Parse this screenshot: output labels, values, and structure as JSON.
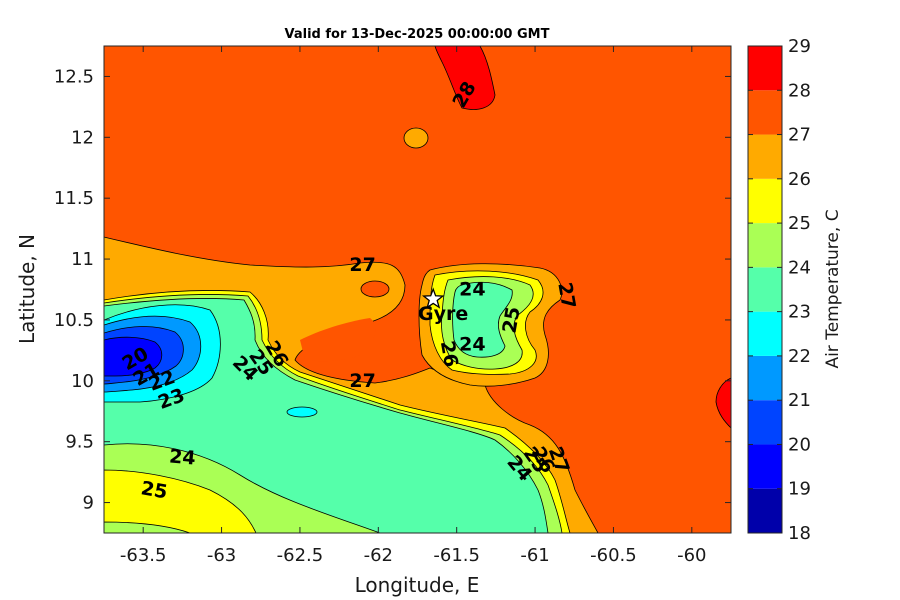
{
  "chart_data": {
    "type": "contour",
    "title": "Valid for 13-Dec-2025 00:00:00 GMT",
    "xlabel": "Longitude, E",
    "ylabel": "Latitude, N",
    "xlim": [
      -63.75,
      -59.75
    ],
    "ylim": [
      8.75,
      12.75
    ],
    "xticks": [
      -63.5,
      -63,
      -62.5,
      -62,
      -61.5,
      -61,
      -60.5,
      -60
    ],
    "yticks": [
      9,
      9.5,
      10,
      10.5,
      11,
      11.5,
      12,
      12.5
    ],
    "colorbar": {
      "label": "Air Temperature, C",
      "levels": [
        18,
        19,
        20,
        21,
        22,
        23,
        24,
        25,
        26,
        27,
        28,
        29
      ],
      "colors": [
        "#0000aa",
        "#0000ff",
        "#0044ff",
        "#0099ff",
        "#00ffff",
        "#55ffaa",
        "#aaff55",
        "#ffff00",
        "#ffaa00",
        "#ff5500",
        "#ff0000",
        "#aa0000"
      ]
    },
    "marker": {
      "label": "Gyre",
      "lon": -61.65,
      "lat": 10.67
    },
    "contour_labels": [
      {
        "text": "28",
        "lon": -61.45,
        "lat": 12.35,
        "rot": -60
      },
      {
        "text": "27",
        "lon": -62.1,
        "lat": 10.95,
        "rot": 0
      },
      {
        "text": "27",
        "lon": -62.1,
        "lat": 10.0,
        "rot": 0
      },
      {
        "text": "27",
        "lon": -60.8,
        "lat": 10.7,
        "rot": 80
      },
      {
        "text": "27",
        "lon": -60.85,
        "lat": 9.35,
        "rot": 70
      },
      {
        "text": "26",
        "lon": -62.65,
        "lat": 10.22,
        "rot": 60
      },
      {
        "text": "26",
        "lon": -61.55,
        "lat": 10.22,
        "rot": 80
      },
      {
        "text": "26",
        "lon": -60.95,
        "lat": 9.35,
        "rot": 60
      },
      {
        "text": "25",
        "lon": -62.75,
        "lat": 10.15,
        "rot": 55
      },
      {
        "text": "25",
        "lon": -61.15,
        "lat": 10.5,
        "rot": -80
      },
      {
        "text": "25",
        "lon": -61.0,
        "lat": 9.35,
        "rot": 55
      },
      {
        "text": "25",
        "lon": -63.43,
        "lat": 9.1,
        "rot": 10
      },
      {
        "text": "24",
        "lon": -62.85,
        "lat": 10.1,
        "rot": 45
      },
      {
        "text": "24",
        "lon": -61.4,
        "lat": 10.75,
        "rot": 0
      },
      {
        "text": "24",
        "lon": -61.4,
        "lat": 10.3,
        "rot": 0
      },
      {
        "text": "24",
        "lon": -61.1,
        "lat": 9.28,
        "rot": 50
      },
      {
        "text": "24",
        "lon": -63.25,
        "lat": 9.37,
        "rot": 5
      },
      {
        "text": "23",
        "lon": -63.32,
        "lat": 9.85,
        "rot": -20
      },
      {
        "text": "22",
        "lon": -63.38,
        "lat": 10.0,
        "rot": -20
      },
      {
        "text": "21",
        "lon": -63.48,
        "lat": 10.05,
        "rot": -30
      },
      {
        "text": "20",
        "lon": -63.55,
        "lat": 10.18,
        "rot": -30
      }
    ]
  }
}
